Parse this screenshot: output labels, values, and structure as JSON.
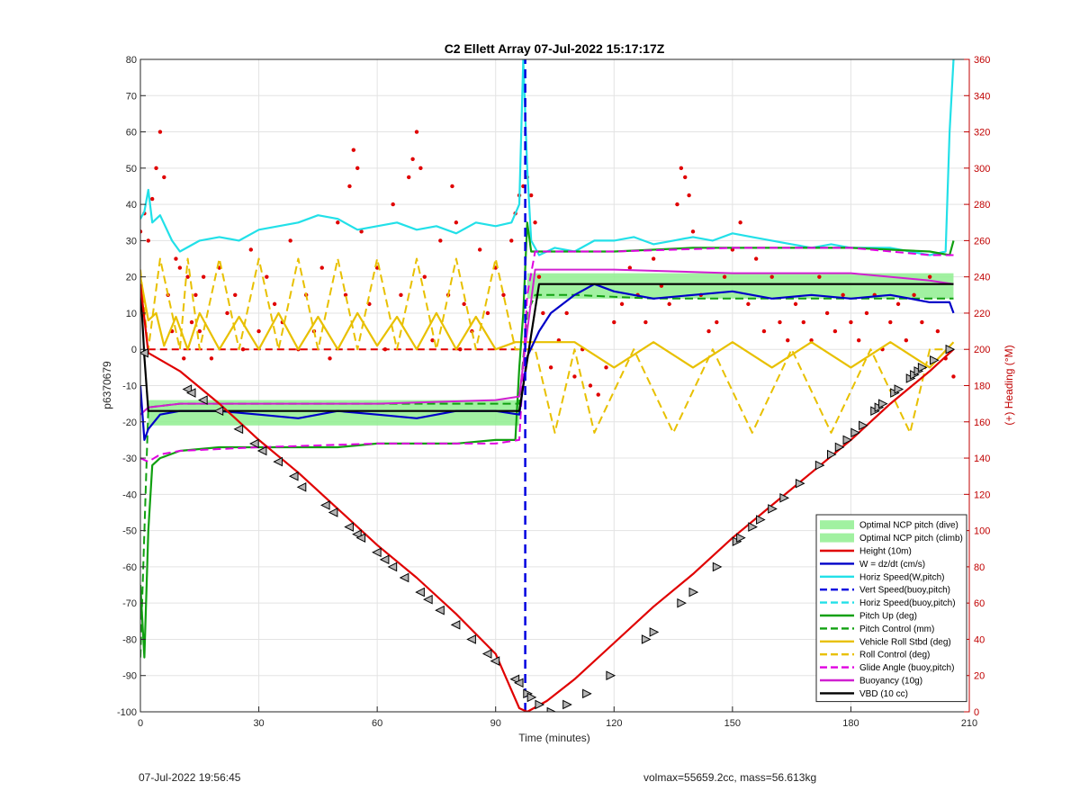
{
  "footer": {
    "left": "07-Jul-2022 19:56:45",
    "right": "volmax=55659.2cc, mass=56.613kg"
  },
  "chart_data": {
    "type": "line",
    "title": "C2 Ellett Array 07-Jul-2022 15:17:17Z",
    "xlabel": "Time (minutes)",
    "ylabel": "p6370679",
    "ylabel_right": "(+) Heading (°M)",
    "xlim": [
      0,
      210
    ],
    "ylim": [
      -100,
      80
    ],
    "ylim_right": [
      0,
      360
    ],
    "x_ticks": [
      0,
      30,
      60,
      90,
      120,
      150,
      180,
      210
    ],
    "y_ticks": [
      -100,
      -90,
      -80,
      -70,
      -60,
      -50,
      -40,
      -30,
      -20,
      -10,
      0,
      10,
      20,
      30,
      40,
      50,
      60,
      70,
      80
    ],
    "y_ticks_right": [
      0,
      20,
      40,
      60,
      80,
      100,
      120,
      140,
      160,
      180,
      200,
      220,
      240,
      260,
      280,
      300,
      320,
      340,
      360
    ],
    "grid": true,
    "legend_position": "bottom-right",
    "colors": {
      "height": "#e00000",
      "w": "#0000c8",
      "horiz_speed": "#22e0e8",
      "vert_speed": "#0000e0",
      "pitch": "#10a010",
      "roll": "#e8c000",
      "glide": "#e000e0",
      "buoyancy": "#d020d0",
      "vbd": "#000000",
      "optimal": "#90ee90",
      "heading": "#e00000",
      "right_axis": "#c00000"
    },
    "legend": [
      {
        "name": "Optimal NCP pitch (dive)",
        "style": "patch",
        "color": "#90ee90"
      },
      {
        "name": "Optimal NCP pitch (climb)",
        "style": "patch",
        "color": "#90ee90"
      },
      {
        "name": "Height (10m)",
        "style": "solid",
        "color": "#e00000"
      },
      {
        "name": "W = dz/dt (cm/s)",
        "style": "solid",
        "color": "#0000c8"
      },
      {
        "name": "Horiz Speed(W,pitch)",
        "style": "solid",
        "color": "#22e0e8"
      },
      {
        "name": "Vert Speed(buoy,pitch)",
        "style": "dashed",
        "color": "#0000e0"
      },
      {
        "name": "Horiz Speed(buoy,pitch)",
        "style": "dashed",
        "color": "#22e0e8"
      },
      {
        "name": "Pitch Up (deg)",
        "style": "solid",
        "color": "#10a010"
      },
      {
        "name": "Pitch Control (mm)",
        "style": "dashed",
        "color": "#10a010"
      },
      {
        "name": "Vehicle Roll Stbd (deg)",
        "style": "solid",
        "color": "#e8c000"
      },
      {
        "name": "Roll Control (deg)",
        "style": "dashed",
        "color": "#e8c000"
      },
      {
        "name": "Glide Angle (buoy,pitch)",
        "style": "dashed",
        "color": "#e000e0"
      },
      {
        "name": "Buoyancy (10g)",
        "style": "solid",
        "color": "#d020d0"
      },
      {
        "name": "VBD (10 cc)",
        "style": "solid",
        "color": "#000000"
      }
    ],
    "series": [
      {
        "key": "height",
        "x": [
          0,
          2,
          10,
          20,
          30,
          40,
          50,
          60,
          70,
          80,
          90,
          96,
          98,
          103,
          110,
          120,
          130,
          140,
          150,
          160,
          170,
          180,
          190,
          200,
          206
        ],
        "values": [
          18,
          -1,
          -6,
          -15,
          -25,
          -34,
          -44,
          -54,
          -63,
          -73,
          -84,
          -99,
          -100,
          -97,
          -91,
          -81,
          -71,
          -62,
          -52,
          -43,
          -34,
          -25,
          -15,
          -6,
          0
        ]
      },
      {
        "key": "w",
        "x": [
          0,
          1,
          2,
          5,
          10,
          20,
          30,
          40,
          50,
          60,
          70,
          80,
          90,
          96,
          97,
          98,
          101,
          104,
          110,
          115,
          120,
          130,
          140,
          150,
          160,
          170,
          180,
          190,
          200,
          205,
          206
        ],
        "values": [
          -10,
          -25,
          -22,
          -18,
          -17,
          -17,
          -18,
          -19,
          -17,
          -18,
          -19,
          -17,
          -17,
          -18,
          -10,
          -2,
          5,
          10,
          15,
          18,
          16,
          14,
          15,
          16,
          14,
          15,
          14,
          15,
          13,
          13,
          10
        ]
      },
      {
        "key": "horiz_speed",
        "x": [
          0,
          1,
          2,
          3,
          5,
          8,
          10,
          15,
          20,
          25,
          30,
          35,
          40,
          45,
          50,
          55,
          60,
          65,
          70,
          75,
          80,
          85,
          90,
          94,
          96,
          97,
          98,
          99,
          101,
          105,
          110,
          115,
          120,
          125,
          130,
          135,
          140,
          145,
          150,
          155,
          160,
          165,
          170,
          175,
          180,
          185,
          190,
          195,
          200,
          204,
          205,
          206
        ],
        "values": [
          36,
          38,
          44,
          35,
          37,
          30,
          27,
          30,
          31,
          30,
          33,
          34,
          35,
          37,
          36,
          33,
          34,
          35,
          33,
          34,
          32,
          35,
          34,
          35,
          40,
          80,
          50,
          30,
          26,
          28,
          27,
          30,
          30,
          31,
          29,
          30,
          31,
          30,
          32,
          31,
          30,
          29,
          28,
          29,
          28,
          28,
          28,
          27,
          26,
          27,
          60,
          80
        ]
      },
      {
        "key": "vert_speed",
        "x": [
          97.5,
          97.5
        ],
        "values": [
          -100,
          80
        ]
      },
      {
        "key": "pitch",
        "x": [
          0,
          1,
          2,
          3,
          5,
          10,
          20,
          30,
          40,
          50,
          60,
          70,
          80,
          90,
          95,
          96,
          97,
          98,
          99,
          100,
          105,
          120,
          140,
          160,
          180,
          200,
          205,
          206
        ],
        "values": [
          -65,
          -85,
          -50,
          -32,
          -30,
          -28,
          -27,
          -27,
          -27,
          -27,
          -26,
          -26,
          -26,
          -25,
          -25,
          -5,
          10,
          35,
          27,
          27,
          27,
          27,
          28,
          28,
          28,
          27,
          26,
          30
        ]
      },
      {
        "key": "pitch_control",
        "x": [
          0,
          2,
          10,
          30,
          60,
          90,
          96,
          98,
          100,
          110,
          130,
          160,
          190,
          206
        ],
        "values": [
          -85,
          -16,
          -15,
          -15,
          -15,
          -15,
          -15,
          10,
          15,
          15,
          14,
          14,
          14,
          14
        ]
      },
      {
        "key": "roll",
        "x": [
          0,
          2,
          4,
          6,
          9,
          12,
          15,
          20,
          25,
          30,
          35,
          40,
          45,
          50,
          55,
          60,
          65,
          70,
          75,
          80,
          85,
          90,
          95,
          100,
          110,
          120,
          130,
          140,
          150,
          160,
          170,
          180,
          190,
          200,
          206
        ],
        "values": [
          20,
          8,
          10,
          1,
          9,
          0,
          10,
          0,
          9,
          0,
          10,
          0,
          9,
          0,
          10,
          1,
          9,
          0,
          10,
          0,
          9,
          0,
          2,
          2,
          2,
          -5,
          2,
          -5,
          2,
          -5,
          2,
          -5,
          2,
          -5,
          2
        ]
      },
      {
        "key": "roll_control",
        "x": [
          0,
          2,
          5,
          10,
          12,
          15,
          20,
          25,
          30,
          35,
          40,
          45,
          50,
          55,
          60,
          65,
          70,
          75,
          80,
          85,
          90,
          95,
          100,
          105,
          110,
          115,
          125,
          135,
          145,
          155,
          165,
          175,
          185,
          195,
          200,
          206
        ],
        "values": [
          22,
          0,
          25,
          0,
          25,
          0,
          25,
          0,
          25,
          0,
          25,
          0,
          25,
          0,
          25,
          0,
          25,
          0,
          25,
          0,
          25,
          0,
          0,
          -23,
          0,
          -23,
          0,
          -23,
          0,
          -23,
          0,
          -23,
          0,
          -23,
          0,
          0
        ]
      },
      {
        "key": "glide",
        "x": [
          0,
          2,
          5,
          10,
          30,
          60,
          90,
          96,
          98,
          100,
          120,
          150,
          180,
          200,
          206
        ],
        "values": [
          -30,
          -31,
          -29,
          -28,
          -27,
          -26,
          -26,
          -25,
          15,
          27,
          27,
          28,
          28,
          26,
          26
        ]
      },
      {
        "key": "buoyancy",
        "x": [
          0,
          2,
          10,
          30,
          60,
          90,
          96,
          98,
          100,
          120,
          150,
          180,
          200,
          206
        ],
        "values": [
          -18,
          -16,
          -15,
          -15,
          -15,
          -14,
          -13,
          5,
          22,
          22,
          21,
          21,
          19,
          18
        ]
      },
      {
        "key": "vbd",
        "x": [
          0,
          1,
          2,
          3,
          10,
          30,
          60,
          90,
          95,
          96,
          101,
          150,
          206
        ],
        "values": [
          18,
          -2,
          -17,
          -17,
          -17,
          -17,
          -17,
          -17,
          -17,
          -17,
          18,
          18,
          18
        ]
      },
      {
        "key": "optimal_dive",
        "x": [
          2,
          96
        ],
        "values": [
          -14,
          -21
        ]
      },
      {
        "key": "optimal_climb",
        "x": [
          98,
          206
        ],
        "values": [
          14,
          21
        ]
      },
      {
        "key": "heading",
        "axis": "right",
        "x": [
          0,
          1,
          2,
          3,
          4,
          5,
          6,
          7,
          8,
          9,
          10,
          11,
          12,
          13,
          14,
          15,
          16,
          18,
          20,
          22,
          24,
          26,
          28,
          30,
          32,
          34,
          36,
          38,
          40,
          42,
          44,
          46,
          48,
          50,
          52,
          53,
          54,
          55,
          56,
          58,
          60,
          62,
          64,
          66,
          68,
          69,
          70,
          71,
          72,
          74,
          76,
          78,
          79,
          80,
          81,
          82,
          84,
          86,
          88,
          90,
          92,
          94,
          95,
          96,
          97,
          98,
          99,
          100,
          101,
          102,
          104,
          106,
          108,
          110,
          112,
          114,
          116,
          118,
          120,
          122,
          124,
          126,
          128,
          130,
          132,
          134,
          136,
          137,
          138,
          139,
          140,
          142,
          144,
          146,
          148,
          150,
          152,
          154,
          156,
          158,
          160,
          162,
          164,
          166,
          168,
          170,
          172,
          174,
          176,
          178,
          180,
          182,
          184,
          186,
          188,
          190,
          192,
          194,
          196,
          198,
          200,
          202,
          204,
          206
        ],
        "values": [
          265,
          275,
          260,
          283,
          300,
          320,
          295,
          230,
          210,
          250,
          245,
          195,
          240,
          215,
          230,
          210,
          240,
          195,
          245,
          220,
          230,
          200,
          255,
          210,
          240,
          225,
          215,
          260,
          200,
          230,
          210,
          245,
          195,
          270,
          230,
          290,
          310,
          300,
          265,
          225,
          245,
          200,
          280,
          230,
          295,
          305,
          320,
          300,
          240,
          205,
          260,
          230,
          290,
          270,
          200,
          225,
          210,
          255,
          220,
          245,
          230,
          260,
          275,
          285,
          290,
          295,
          285,
          270,
          240,
          220,
          190,
          205,
          220,
          185,
          200,
          180,
          175,
          190,
          215,
          225,
          245,
          230,
          215,
          250,
          235,
          225,
          280,
          300,
          295,
          285,
          265,
          230,
          210,
          215,
          240,
          255,
          270,
          225,
          250,
          210,
          240,
          215,
          205,
          225,
          215,
          205,
          240,
          220,
          210,
          230,
          215,
          205,
          220,
          230,
          200,
          215,
          225,
          205,
          230,
          215,
          240,
          210,
          195,
          185
        ]
      },
      {
        "key": "markers",
        "x": [
          1,
          12,
          13,
          16,
          20,
          25,
          29,
          31,
          35,
          39,
          41,
          47,
          49,
          53,
          55,
          56,
          60,
          62,
          64,
          67,
          71,
          73,
          76,
          80,
          84,
          88,
          90,
          95,
          96,
          98,
          99,
          101,
          104,
          108,
          113,
          119,
          128,
          130,
          137,
          140,
          146,
          151,
          152,
          155,
          157,
          160,
          163,
          167,
          172,
          175,
          177,
          179,
          181,
          183,
          186,
          187,
          188,
          191,
          192,
          195,
          196,
          197,
          198,
          201,
          205
        ],
        "values": [
          -1,
          -11,
          -12,
          -14,
          -17,
          -22,
          -26,
          -28,
          -31,
          -35,
          -38,
          -43,
          -45,
          -49,
          -51,
          -52,
          -56,
          -58,
          -60,
          -63,
          -67,
          -69,
          -72,
          -76,
          -80,
          -84,
          -86,
          -91,
          -92,
          -95,
          -96,
          -98,
          -100,
          -98,
          -95,
          -90,
          -80,
          -78,
          -70,
          -67,
          -60,
          -53,
          -52,
          -49,
          -47,
          -44,
          -41,
          -37,
          -32,
          -29,
          -27,
          -25,
          -23,
          -21,
          -17,
          -16,
          -15,
          -12,
          -11,
          -8,
          -7,
          -6,
          -5,
          -3,
          0
        ]
      }
    ]
  }
}
